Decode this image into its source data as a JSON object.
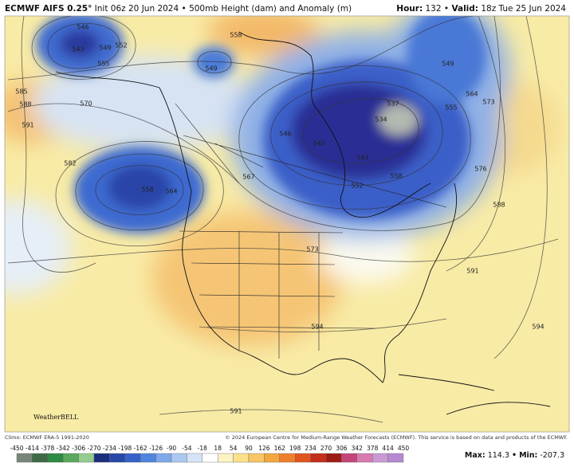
{
  "header": {
    "model": "ECMWF AIFS 0.25°",
    "init": "Init 06z 20 Jun 2024",
    "separator": "•",
    "description": "500mb Height (dam) and Anomaly (m)",
    "hour_label": "Hour:",
    "hour": 132,
    "valid_label": "Valid:",
    "valid": "18z Tue 25 Jun 2024"
  },
  "map": {
    "contour_labels": [
      546,
      543,
      549,
      552,
      555,
      549,
      558,
      570,
      585,
      588,
      591,
      582,
      558,
      564,
      567,
      573,
      546,
      540,
      543,
      552,
      558,
      537,
      534,
      549,
      564,
      573,
      555,
      576,
      588,
      591,
      594,
      594,
      591
    ],
    "logo": "WeatherBELL"
  },
  "footer": {
    "climo": "Climo: ECMWF ERA-5 1991-2020",
    "copyright": "© 2024 European Centre for Medium-Range Weather Forecasts (ECMWF). This service is based on data and products of the ECMWF."
  },
  "colorbar": {
    "ticks": [
      -450,
      -414,
      -378,
      -342,
      -306,
      -270,
      -234,
      -198,
      -162,
      -126,
      -90,
      -54,
      -18,
      18,
      54,
      90,
      126,
      162,
      198,
      234,
      270,
      306,
      342,
      378,
      414,
      450
    ],
    "colors": [
      "#7a857a",
      "#3e6b45",
      "#2f8a44",
      "#5aa85e",
      "#95cc8f",
      "#1c2f7c",
      "#2848a8",
      "#3562c8",
      "#4f85dd",
      "#7ea9ea",
      "#acc8f1",
      "#d6e4f7",
      "#ffffff",
      "#fcf3c4",
      "#fbe18a",
      "#f8c664",
      "#f4a640",
      "#ee7f2c",
      "#e0541f",
      "#c42e1a",
      "#9e1a15",
      "#c2467a",
      "#d97ab0",
      "#c99ad4",
      "#b58ad0"
    ]
  },
  "stats": {
    "max_label": "Max:",
    "max": 114.3,
    "separator": "•",
    "min_label": "Min:",
    "min": -207.3
  }
}
